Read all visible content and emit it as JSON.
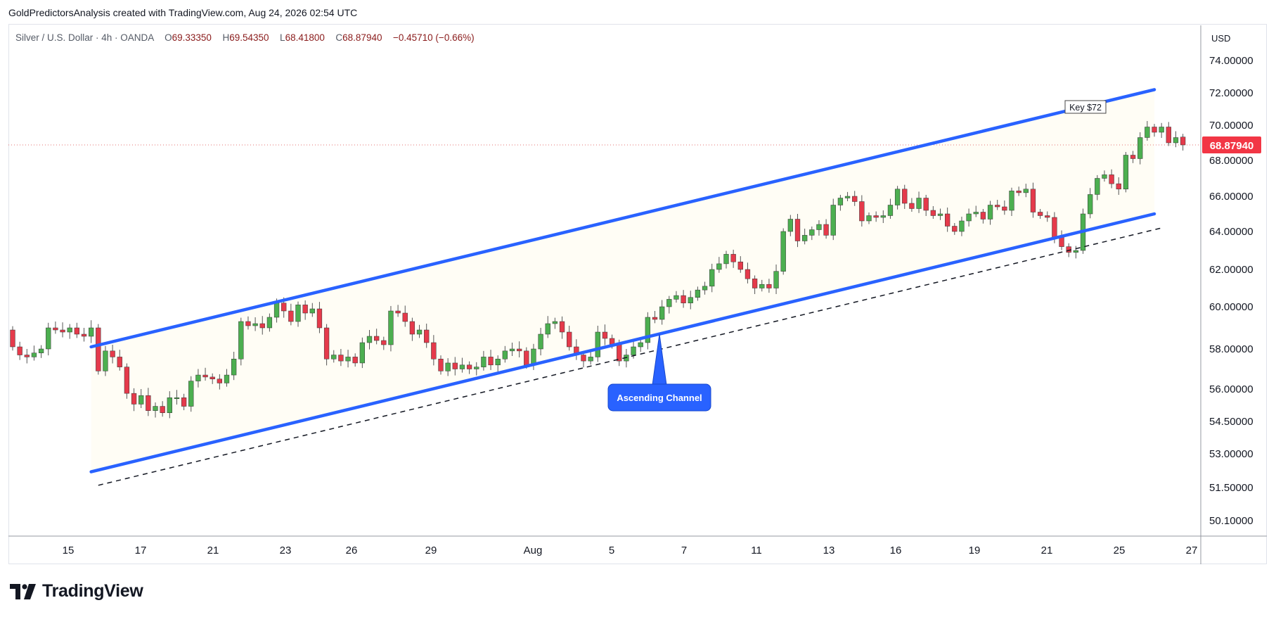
{
  "header": {
    "caption": "GoldPredictorsAnalysis created with TradingView.com, Aug 24, 2026 02:54 UTC"
  },
  "legend": {
    "symbol": "Silver / U.S. Dollar · 4h · OANDA",
    "open": "69.33350",
    "high": "69.54350",
    "low": "68.41800",
    "close": "68.87940",
    "change": "−0.45710 (−0.66%)"
  },
  "footer": {
    "brand": "TradingView"
  },
  "colors": {
    "up": "#26a69a",
    "up_body": "#4caf50",
    "down": "#e53a4b",
    "channel": "#2962ff",
    "channel_fill": "#fffdf5",
    "last_price_bg": "#f23645"
  },
  "chart_data": {
    "type": "candlestick",
    "currency_label": "USD",
    "y_ticks": [
      "74.00000",
      "72.00000",
      "70.00000",
      "68.00000",
      "66.00000",
      "64.00000",
      "62.00000",
      "60.00000",
      "58.00000",
      "56.00000",
      "54.50000",
      "53.00000",
      "51.50000",
      "50.10000"
    ],
    "y_tick_values": [
      74,
      72,
      70,
      68,
      66,
      64,
      62,
      60,
      58,
      56,
      54.5,
      53,
      51.5,
      50.1
    ],
    "last_price_label": "68.87940",
    "last_price": 68.8794,
    "x_ticks": [
      "15",
      "17",
      "21",
      "23",
      "26",
      "29",
      "Aug",
      "5",
      "7",
      "11",
      "13",
      "16",
      "19",
      "21",
      "25",
      "27"
    ],
    "x_tick_slots": [
      12,
      22,
      32,
      42,
      51,
      62,
      76,
      87,
      97,
      107,
      117,
      126,
      137,
      147,
      157,
      167
    ],
    "annotations": {
      "key_level": "Key $72",
      "channel_label": "Ascending Channel"
    },
    "channel": {
      "upper": {
        "from": [
          11,
          58.1
        ],
        "to": [
          160,
          72.2
        ]
      },
      "lower": {
        "from": [
          11,
          52.2
        ],
        "to": [
          160,
          65.0
        ]
      },
      "dashed": {
        "from": [
          12,
          51.6
        ],
        "to": [
          161,
          64.2
        ]
      },
      "label_anchor": [
        90,
        58.9
      ]
    },
    "candles": [
      [
        58.9,
        58.1
      ],
      [
        58.1,
        57.7
      ],
      [
        57.7,
        57.6
      ],
      [
        57.6,
        57.8
      ],
      [
        57.8,
        58.0
      ],
      [
        58.0,
        59.0
      ],
      [
        59.0,
        58.9
      ],
      [
        58.9,
        58.8
      ],
      [
        58.8,
        59.0
      ],
      [
        59.0,
        58.7
      ],
      [
        58.7,
        58.6
      ],
      [
        58.6,
        59.0
      ],
      [
        59.0,
        56.9
      ],
      [
        56.9,
        57.9
      ],
      [
        57.9,
        57.6
      ],
      [
        57.6,
        57.1
      ],
      [
        57.1,
        55.8
      ],
      [
        55.8,
        55.3
      ],
      [
        55.3,
        55.7
      ],
      [
        55.7,
        55.0
      ],
      [
        55.0,
        55.2
      ],
      [
        55.2,
        54.9
      ],
      [
        54.9,
        55.6
      ],
      [
        55.6,
        55.6
      ],
      [
        55.6,
        55.2
      ],
      [
        55.2,
        56.4
      ],
      [
        56.4,
        56.7
      ],
      [
        56.7,
        56.6
      ],
      [
        56.6,
        56.5
      ],
      [
        56.5,
        56.3
      ],
      [
        56.3,
        56.7
      ],
      [
        56.7,
        57.5
      ],
      [
        57.5,
        59.3
      ],
      [
        59.3,
        59.1
      ],
      [
        59.1,
        59.2
      ],
      [
        59.2,
        59.0
      ],
      [
        59.0,
        59.5
      ],
      [
        59.5,
        60.2
      ],
      [
        60.2,
        59.8
      ],
      [
        59.8,
        59.3
      ],
      [
        59.3,
        60.1
      ],
      [
        60.1,
        59.7
      ],
      [
        59.7,
        59.9
      ],
      [
        59.9,
        59.0
      ],
      [
        59.0,
        57.5
      ],
      [
        57.5,
        57.7
      ],
      [
        57.7,
        57.4
      ],
      [
        57.4,
        57.6
      ],
      [
        57.6,
        57.3
      ],
      [
        57.3,
        58.3
      ],
      [
        58.3,
        58.6
      ],
      [
        58.6,
        58.4
      ],
      [
        58.4,
        58.2
      ],
      [
        58.2,
        59.8
      ],
      [
        59.8,
        59.7
      ],
      [
        59.7,
        59.3
      ],
      [
        59.3,
        58.7
      ],
      [
        58.7,
        58.9
      ],
      [
        58.9,
        58.3
      ],
      [
        58.3,
        57.5
      ],
      [
        57.5,
        56.9
      ],
      [
        56.9,
        57.3
      ],
      [
        57.3,
        57.0
      ],
      [
        57.0,
        57.2
      ],
      [
        57.2,
        57.0
      ],
      [
        57.0,
        57.1
      ],
      [
        57.1,
        57.6
      ],
      [
        57.6,
        57.2
      ],
      [
        57.2,
        57.5
      ],
      [
        57.5,
        57.9
      ],
      [
        57.9,
        58.0
      ],
      [
        58.0,
        57.9
      ],
      [
        57.9,
        57.2
      ],
      [
        57.2,
        58.0
      ],
      [
        58.0,
        58.7
      ],
      [
        58.7,
        59.2
      ],
      [
        59.2,
        59.3
      ],
      [
        59.3,
        58.8
      ],
      [
        58.8,
        58.1
      ],
      [
        58.1,
        57.7
      ],
      [
        57.7,
        57.4
      ],
      [
        57.4,
        57.6
      ],
      [
        57.6,
        58.8
      ],
      [
        58.8,
        58.5
      ],
      [
        58.5,
        58.2
      ],
      [
        58.2,
        57.4
      ],
      [
        57.4,
        57.7
      ],
      [
        57.7,
        58.1
      ],
      [
        58.1,
        58.3
      ],
      [
        58.3,
        59.5
      ],
      [
        59.5,
        59.4
      ],
      [
        59.4,
        60.0
      ],
      [
        60.0,
        60.4
      ],
      [
        60.4,
        60.6
      ],
      [
        60.6,
        60.2
      ],
      [
        60.2,
        60.5
      ],
      [
        60.5,
        60.9
      ],
      [
        60.9,
        61.1
      ],
      [
        61.1,
        62.0
      ],
      [
        62.0,
        62.3
      ],
      [
        62.3,
        62.8
      ],
      [
        62.8,
        62.4
      ],
      [
        62.4,
        62.0
      ],
      [
        62.0,
        61.5
      ],
      [
        61.5,
        61.0
      ],
      [
        61.0,
        61.2
      ],
      [
        61.2,
        61.0
      ],
      [
        61.0,
        61.9
      ],
      [
        61.9,
        64.0
      ],
      [
        64.0,
        64.7
      ],
      [
        64.7,
        63.5
      ],
      [
        63.5,
        63.8
      ],
      [
        63.8,
        64.1
      ],
      [
        64.1,
        64.4
      ],
      [
        64.4,
        63.8
      ],
      [
        63.8,
        65.5
      ],
      [
        65.5,
        65.9
      ],
      [
        65.9,
        66.0
      ],
      [
        66.0,
        65.7
      ],
      [
        65.7,
        64.6
      ],
      [
        64.6,
        64.9
      ],
      [
        64.9,
        64.8
      ],
      [
        64.8,
        64.9
      ],
      [
        64.9,
        65.5
      ],
      [
        65.5,
        66.4
      ],
      [
        66.4,
        65.6
      ],
      [
        65.6,
        65.3
      ],
      [
        65.3,
        65.9
      ],
      [
        65.9,
        65.2
      ],
      [
        65.2,
        64.9
      ],
      [
        64.9,
        65.0
      ],
      [
        65.0,
        64.3
      ],
      [
        64.3,
        64.0
      ],
      [
        64.0,
        64.6
      ],
      [
        64.6,
        65.0
      ],
      [
        65.0,
        65.1
      ],
      [
        65.1,
        64.7
      ],
      [
        64.7,
        65.5
      ],
      [
        65.5,
        65.4
      ],
      [
        65.4,
        65.2
      ],
      [
        65.2,
        66.3
      ],
      [
        66.3,
        66.2
      ],
      [
        66.2,
        66.4
      ],
      [
        66.4,
        65.1
      ],
      [
        65.1,
        64.9
      ],
      [
        64.9,
        64.8
      ],
      [
        64.8,
        63.7
      ],
      [
        63.7,
        63.2
      ],
      [
        63.2,
        62.9
      ],
      [
        62.9,
        63.0
      ],
      [
        63.0,
        65.0
      ],
      [
        65.0,
        66.1
      ],
      [
        66.1,
        67.0
      ],
      [
        67.0,
        67.2
      ],
      [
        67.2,
        66.7
      ],
      [
        66.7,
        66.4
      ],
      [
        66.4,
        68.3
      ],
      [
        68.3,
        68.1
      ],
      [
        68.1,
        69.3
      ],
      [
        69.3,
        69.9
      ],
      [
        69.9,
        69.6
      ],
      [
        69.6,
        69.9
      ],
      [
        69.9,
        69.0
      ],
      [
        69.0,
        69.3
      ],
      [
        69.33,
        68.88
      ]
    ]
  }
}
